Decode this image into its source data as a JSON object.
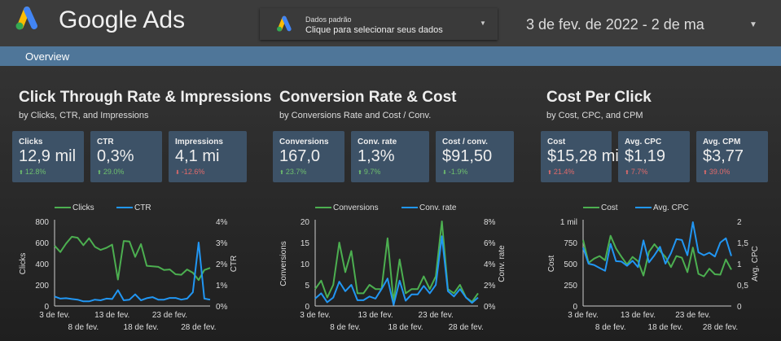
{
  "header": {
    "brand": "Google Ads",
    "data_source_label": "Dados padrão",
    "data_source_hint": "Clique para selecionar seus dados",
    "date_range": "3 de fev. de 2022 - 2 de ma"
  },
  "nav": {
    "tab": "Overview"
  },
  "colors": {
    "green": "#4caf50",
    "blue": "#2196f3",
    "card": "#3d5267",
    "bar": "#4f7699",
    "up": "#6ebf6e",
    "down": "#e06a6a"
  },
  "panels": [
    {
      "title": "Click Through Rate & Impressions",
      "subtitle": "by Clicks, CTR, and Impressions",
      "cards": [
        {
          "label": "Clicks",
          "value": "12,9 mil",
          "delta": "12.8%",
          "dir": "up",
          "good": true
        },
        {
          "label": "CTR",
          "value": "0,3%",
          "delta": "29.0%",
          "dir": "up",
          "good": true
        },
        {
          "label": "Impressions",
          "value": "4,1 mi",
          "delta": "-12.6%",
          "dir": "down",
          "good": false
        }
      ]
    },
    {
      "title": "Conversion Rate & Cost",
      "subtitle": "by Conversions Rate and Cost / Conv.",
      "cards": [
        {
          "label": "Conversions",
          "value": "167,0",
          "delta": "23.7%",
          "dir": "up",
          "good": true
        },
        {
          "label": "Conv. rate",
          "value": "1,3%",
          "delta": "9.7%",
          "dir": "up",
          "good": true
        },
        {
          "label": "Cost / conv.",
          "value": "$91,50",
          "delta": "-1.9%",
          "dir": "down",
          "good": true
        }
      ]
    },
    {
      "title": "Cost Per Click",
      "subtitle": "by Cost, CPC, and CPM",
      "cards": [
        {
          "label": "Cost",
          "value": "$15,28 mil",
          "delta": "21.4%",
          "dir": "up",
          "good": false
        },
        {
          "label": "Avg. CPC",
          "value": "$1,19",
          "delta": "7.7%",
          "dir": "up",
          "good": false
        },
        {
          "label": "Avg. CPM",
          "value": "$3,77",
          "delta": "39.0%",
          "dir": "up",
          "good": false
        }
      ]
    }
  ],
  "chart_data": [
    {
      "type": "line",
      "xlabels_row1": [
        "3 de fev.",
        "13 de fev.",
        "23 de fev."
      ],
      "xlabels_row2": [
        "8 de fev.",
        "18 de fev.",
        "28 de fev."
      ],
      "ylabel": "Clicks",
      "y2label": "CTR",
      "yticks": [
        "0",
        "200",
        "400",
        "600",
        "800"
      ],
      "y2ticks": [
        "0%",
        "1%",
        "2%",
        "3%",
        "4%"
      ],
      "ylim": [
        0,
        800
      ],
      "y2lim": [
        0,
        4
      ],
      "legend": "top",
      "series": [
        {
          "name": "Clicks",
          "axis": "left",
          "color": "#4caf50",
          "values": [
            570,
            510,
            590,
            655,
            645,
            575,
            640,
            560,
            530,
            550,
            580,
            250,
            615,
            610,
            465,
            585,
            380,
            375,
            370,
            340,
            345,
            300,
            295,
            345,
            315,
            245,
            340,
            360
          ]
        },
        {
          "name": "CTR",
          "axis": "right",
          "color": "#2196f3",
          "values": [
            0.45,
            0.35,
            0.37,
            0.33,
            0.3,
            0.22,
            0.22,
            0.3,
            0.27,
            0.35,
            0.33,
            0.75,
            0.27,
            0.3,
            0.55,
            0.27,
            0.37,
            0.42,
            0.3,
            0.3,
            0.38,
            0.38,
            0.3,
            0.35,
            0.65,
            3.0,
            0.35,
            0.3
          ]
        }
      ]
    },
    {
      "type": "line",
      "xlabels_row1": [
        "3 de fev.",
        "13 de fev.",
        "23 de fev."
      ],
      "xlabels_row2": [
        "8 de fev.",
        "18 de fev.",
        "28 de fev."
      ],
      "ylabel": "Conversions",
      "y2label": "Conv. rate",
      "yticks": [
        "0",
        "5",
        "10",
        "15",
        "20"
      ],
      "y2ticks": [
        "0%",
        "2%",
        "4%",
        "6%",
        "8%"
      ],
      "ylim": [
        0,
        20
      ],
      "y2lim": [
        0,
        8
      ],
      "legend": "top",
      "series": [
        {
          "name": "Conversions",
          "axis": "left",
          "color": "#4caf50",
          "values": [
            4,
            6,
            2,
            5,
            15,
            8,
            13,
            3,
            3,
            5,
            4,
            4,
            16,
            1,
            11,
            3,
            4,
            4,
            7,
            4,
            7,
            20,
            4,
            3,
            5,
            2,
            1,
            3
          ]
        },
        {
          "name": "Conv. rate",
          "axis": "right",
          "color": "#2196f3",
          "values": [
            0.7,
            1.2,
            0.35,
            0.8,
            2.3,
            1.4,
            2.0,
            0.55,
            0.55,
            0.9,
            0.7,
            1.6,
            2.6,
            0.1,
            2.4,
            0.5,
            1.1,
            1.1,
            1.9,
            1.2,
            2.0,
            6.6,
            1.4,
            0.9,
            1.6,
            0.8,
            0.3,
            0.8
          ]
        }
      ]
    },
    {
      "type": "line",
      "xlabels_row1": [
        "3 de fev.",
        "13 de fev.",
        "23 de fev."
      ],
      "xlabels_row2": [
        "8 de fev.",
        "18 de fev.",
        "28 de fev."
      ],
      "ylabel": "Cost",
      "y2label": "Avg. CPC",
      "yticks": [
        "0",
        "250",
        "500",
        "750",
        "1 mil"
      ],
      "y2ticks": [
        "0",
        "0,5",
        "1",
        "1,5",
        "2"
      ],
      "ylim": [
        0,
        1000
      ],
      "y2lim": [
        0,
        2
      ],
      "legend": "top",
      "series": [
        {
          "name": "Cost",
          "axis": "left",
          "color": "#4caf50",
          "values": [
            780,
            510,
            560,
            590,
            540,
            830,
            680,
            580,
            490,
            580,
            530,
            360,
            640,
            730,
            650,
            580,
            460,
            590,
            570,
            400,
            690,
            380,
            350,
            440,
            375,
            370,
            550,
            430
          ]
        },
        {
          "name": "Avg. CPC",
          "axis": "right",
          "color": "#2196f3",
          "values": [
            1.38,
            1.0,
            0.97,
            0.9,
            0.83,
            1.47,
            1.06,
            1.05,
            0.95,
            1.07,
            0.92,
            1.55,
            1.03,
            1.2,
            1.4,
            1.0,
            1.25,
            1.58,
            1.56,
            1.2,
            1.98,
            1.27,
            1.2,
            1.26,
            1.17,
            1.5,
            1.6,
            1.18
          ]
        }
      ]
    }
  ]
}
